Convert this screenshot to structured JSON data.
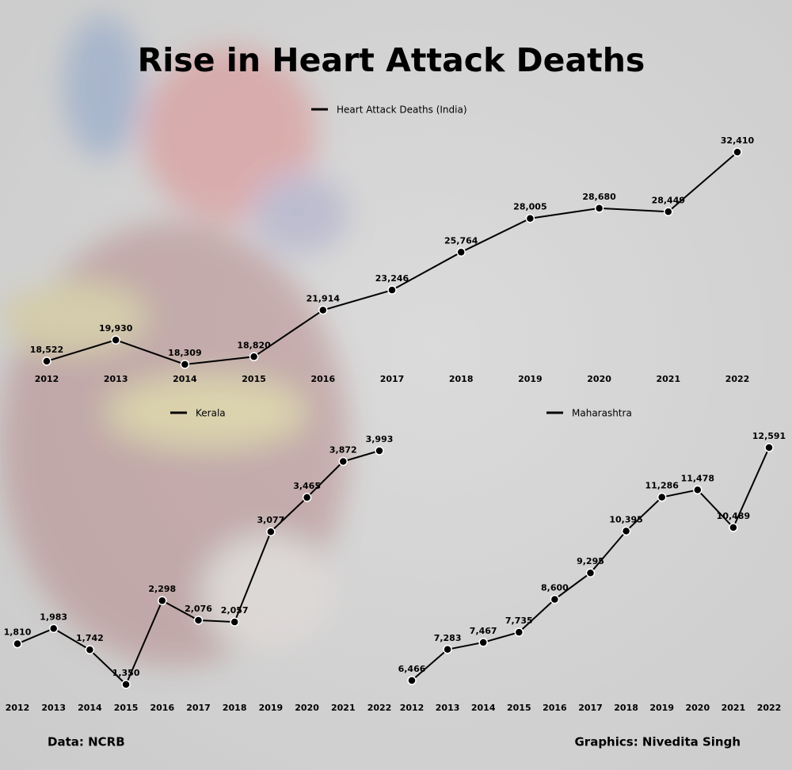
{
  "title": "Rise in Heart Attack Deaths",
  "chart_data": [
    {
      "type": "line",
      "categories": [
        "2012",
        "2013",
        "2014",
        "2015",
        "2016",
        "2017",
        "2018",
        "2019",
        "2020",
        "2021",
        "2022"
      ],
      "series": [
        {
          "name": "Heart Attack Deaths (India)",
          "color": "#000000",
          "values": [
            18522,
            19930,
            18309,
            18820,
            21914,
            23246,
            25764,
            28005,
            28680,
            28449,
            32410
          ],
          "value_labels": [
            "18,522",
            "19,930",
            "18,309",
            "18,820",
            "21,914",
            "23,246",
            "25,764",
            "28,005",
            "28,680",
            "28,449",
            "32,410"
          ]
        }
      ]
    },
    {
      "type": "line",
      "categories": [
        "2012",
        "2013",
        "2014",
        "2015",
        "2016",
        "2017",
        "2018",
        "2019",
        "2020",
        "2021",
        "2022"
      ],
      "series": [
        {
          "name": "Kerala",
          "color": "#000000",
          "values": [
            1810,
            1983,
            1742,
            1350,
            2298,
            2076,
            2057,
            3077,
            3465,
            3872,
            3993
          ],
          "value_labels": [
            "1,810",
            "1,983",
            "1,742",
            "1,350",
            "2,298",
            "2,076",
            "2,057",
            "3,077",
            "3,465",
            "3,872",
            "3,993"
          ]
        }
      ]
    },
    {
      "type": "line",
      "categories": [
        "2012",
        "2013",
        "2014",
        "2015",
        "2016",
        "2017",
        "2018",
        "2019",
        "2020",
        "2021",
        "2022"
      ],
      "series": [
        {
          "name": "Maharashtra",
          "color": "#000000",
          "values": [
            6466,
            7283,
            7467,
            7735,
            8600,
            9295,
            10395,
            11286,
            11478,
            10489,
            12591
          ],
          "value_labels": [
            "6,466",
            "7,283",
            "7,467",
            "7,735",
            "8,600",
            "9,295",
            "10,395",
            "11,286",
            "11,478",
            "10,489",
            "12,591"
          ]
        }
      ]
    }
  ],
  "footer": {
    "source": "Data: NCRB",
    "credit": "Graphics: Nivedita Singh"
  }
}
